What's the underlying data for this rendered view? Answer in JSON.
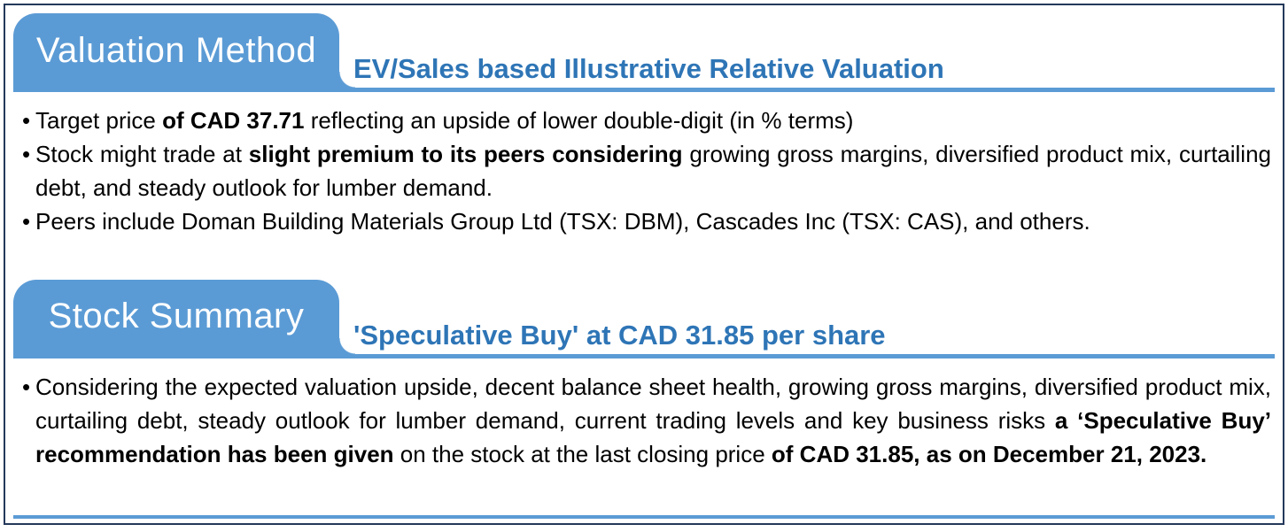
{
  "frame": {
    "border_color": "#24395B",
    "accent_color": "#5B9BD5",
    "heading_color": "#2E75B6"
  },
  "sections": [
    {
      "tab_label": "Valuation Method",
      "heading": "EV/Sales based Illustrative Relative Valuation",
      "bullets": [
        {
          "marker": "•",
          "pre": "Target price ",
          "bold": "of CAD 37.71",
          "post": " reflecting an upside of lower double-digit (in % terms)"
        },
        {
          "marker": "•",
          "pre": "Stock might trade at ",
          "bold": "slight premium to its peers considering",
          "post": " growing gross margins, diversified product mix, curtailing debt, and steady outlook for lumber demand."
        },
        {
          "marker": "•",
          "pre": "Peers include Doman Building Materials Group Ltd (TSX: DBM), Cascades Inc (TSX: CAS), and others."
        }
      ]
    },
    {
      "tab_label": "Stock Summary",
      "heading": "'Speculative Buy' at CAD 31.85 per share",
      "bullets": [
        {
          "marker": "•",
          "pre": "Considering the expected valuation upside, decent balance sheet health, growing gross margins, diversified product mix, curtailing debt, steady outlook for lumber demand, current trading levels and key business risks ",
          "bold": "a ‘Speculative Buy’ recommendation has been given",
          "mid": " on the stock at the last closing price ",
          "bold2": "of CAD 31.85, as on December 21, 2023."
        }
      ]
    }
  ]
}
